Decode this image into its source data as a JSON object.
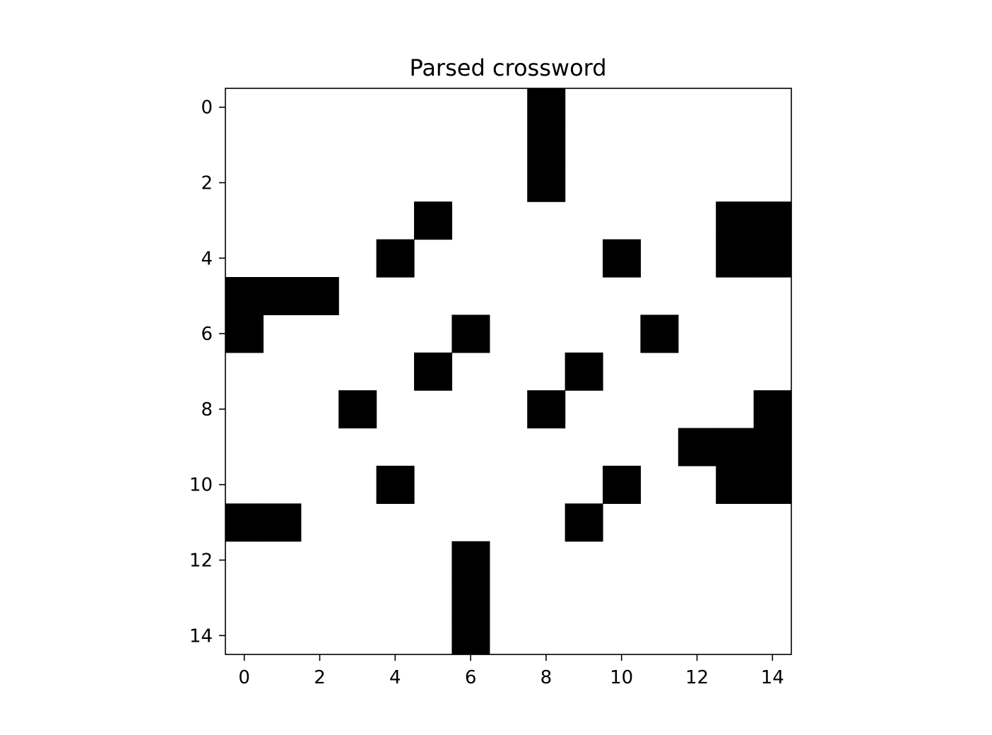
{
  "chart_data": {
    "type": "heatmap",
    "title": "Parsed crossword",
    "xlabel": "",
    "ylabel": "",
    "rows": 15,
    "cols": 15,
    "xlim": [
      -0.5,
      14.5
    ],
    "ylim": [
      14.5,
      -0.5
    ],
    "x_ticks": [
      0,
      2,
      4,
      6,
      8,
      10,
      12,
      14
    ],
    "y_ticks": [
      0,
      2,
      4,
      6,
      8,
      10,
      12,
      14
    ],
    "x_tick_labels": [
      "0",
      "2",
      "4",
      "6",
      "8",
      "10",
      "12",
      "14"
    ],
    "y_tick_labels": [
      "0",
      "2",
      "4",
      "6",
      "8",
      "10",
      "12",
      "14"
    ],
    "grid": false,
    "colormap": {
      "0": "#ffffff",
      "1": "#000000"
    },
    "black_cells": [
      [
        0,
        8
      ],
      [
        1,
        8
      ],
      [
        2,
        8
      ],
      [
        3,
        5
      ],
      [
        3,
        13
      ],
      [
        3,
        14
      ],
      [
        4,
        4
      ],
      [
        4,
        10
      ],
      [
        4,
        13
      ],
      [
        4,
        14
      ],
      [
        5,
        0
      ],
      [
        5,
        1
      ],
      [
        5,
        2
      ],
      [
        6,
        0
      ],
      [
        6,
        6
      ],
      [
        6,
        11
      ],
      [
        7,
        5
      ],
      [
        7,
        9
      ],
      [
        8,
        3
      ],
      [
        8,
        8
      ],
      [
        8,
        14
      ],
      [
        9,
        12
      ],
      [
        9,
        13
      ],
      [
        9,
        14
      ],
      [
        10,
        4
      ],
      [
        10,
        10
      ],
      [
        10,
        13
      ],
      [
        10,
        14
      ],
      [
        11,
        0
      ],
      [
        11,
        1
      ],
      [
        11,
        9
      ],
      [
        12,
        6
      ],
      [
        13,
        6
      ],
      [
        14,
        6
      ]
    ]
  }
}
